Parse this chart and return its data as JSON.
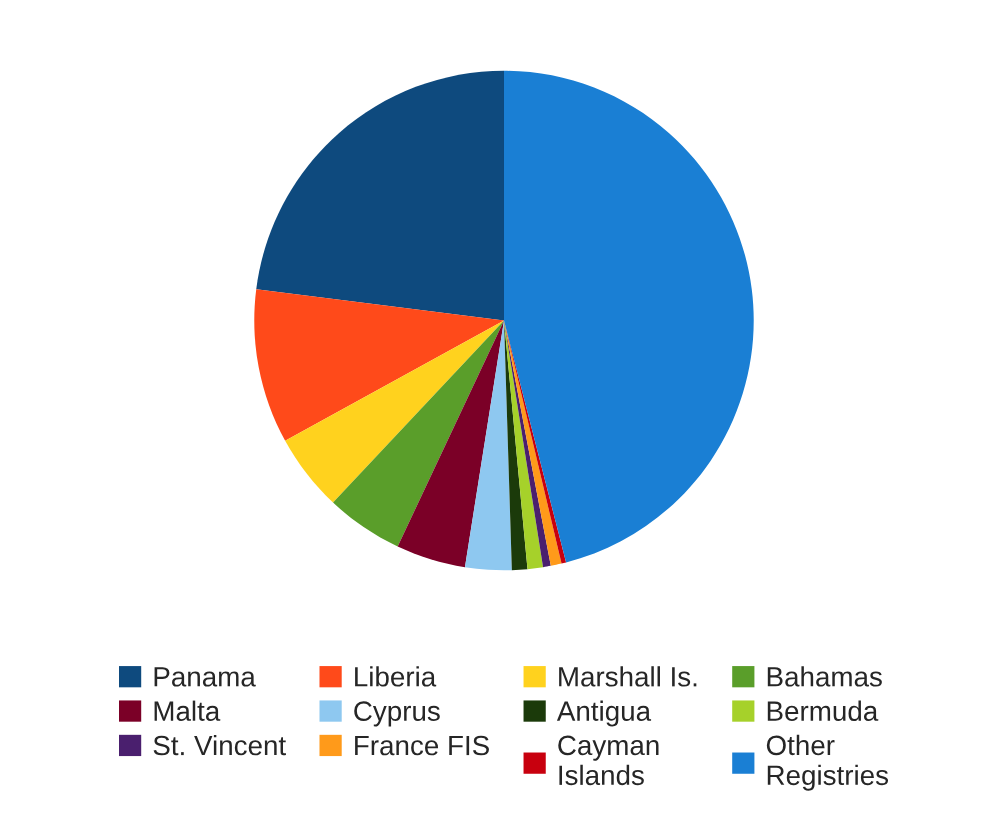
{
  "chart_data": {
    "type": "pie",
    "categories": [
      "Panama",
      "Liberia",
      "Marshall Is.",
      "Bahamas",
      "Malta",
      "Cyprus",
      "Antigua",
      "Bermuda",
      "St. Vincent",
      "France FIS",
      "Cayman Islands",
      "Other Registries"
    ],
    "values": [
      23,
      10,
      5,
      5,
      4.5,
      3,
      1,
      1,
      0.5,
      0.7,
      0.3,
      46
    ],
    "colors": [
      "#0e4a7e",
      "#ff4a1a",
      "#ffd21e",
      "#5a9e2a",
      "#7b0027",
      "#8ec8f0",
      "#1b3a0a",
      "#a6d12a",
      "#4a1f6e",
      "#ff9a1a",
      "#c8000e",
      "#1a7fd4"
    ],
    "legend": "bottom"
  }
}
